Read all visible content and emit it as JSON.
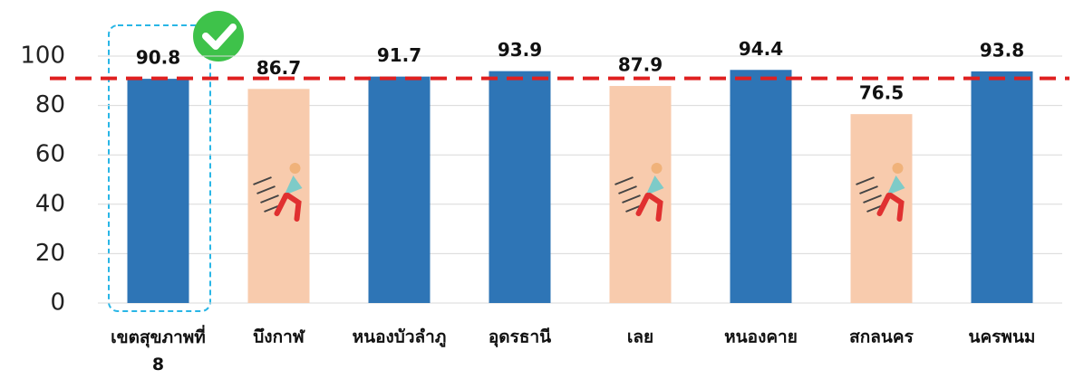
{
  "chart_data": {
    "type": "bar",
    "categories": [
      "เขตสุขภาพที่ 8",
      "บึงกาฬ",
      "หนองบัวลำภู",
      "อุดรธานี",
      "เลย",
      "หนองคาย",
      "สกลนคร",
      "นครพนม"
    ],
    "values": [
      90.8,
      86.7,
      91.7,
      93.9,
      87.9,
      94.4,
      76.5,
      93.8
    ],
    "colors": [
      "#2e75b6",
      "#f8cbad",
      "#2e75b6",
      "#2e75b6",
      "#f8cbad",
      "#2e75b6",
      "#f8cbad",
      "#2e75b6"
    ],
    "reference_line": 91,
    "reference_color": "#e02020",
    "ylim": [
      0,
      100
    ],
    "yticks": [
      0,
      20,
      40,
      60,
      80,
      100
    ],
    "grid": true
  }
}
